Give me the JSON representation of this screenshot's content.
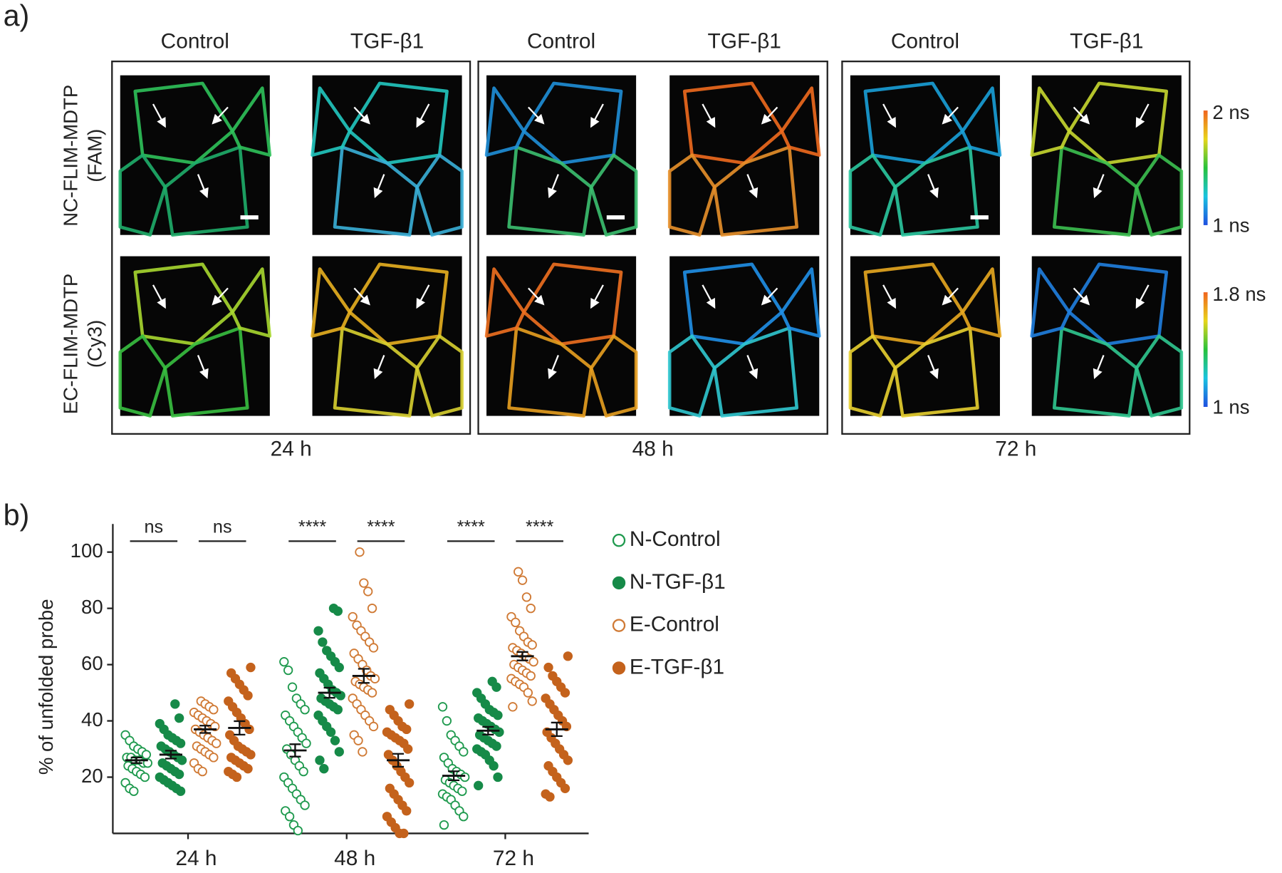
{
  "panel_a": {
    "label": "a)",
    "groups": [
      {
        "time": "24 h",
        "headers": [
          "Control",
          "TGF-β1"
        ]
      },
      {
        "time": "48 h",
        "headers": [
          "Control",
          "TGF-β1"
        ]
      },
      {
        "time": "72 h",
        "headers": [
          "Control",
          "TGF-β1"
        ]
      }
    ],
    "rows": [
      {
        "probe": "NC-FLIM-MDTP",
        "dye": "(FAM)",
        "scale": {
          "max": "2 ns",
          "min": "1 ns"
        }
      },
      {
        "probe": "EC-FLIM-MDTP",
        "dye": "(Cy3)",
        "scale": {
          "max": "1.8 ns",
          "min": "1 ns"
        }
      }
    ]
  },
  "panel_b_label": "b)",
  "chart_data": {
    "type": "strip",
    "ylabel": "% of unfolded probe",
    "categories": [
      "24 h",
      "48 h",
      "72 h"
    ],
    "ylim": [
      0,
      110
    ],
    "yticks": [
      20,
      40,
      60,
      80,
      100
    ],
    "significance": [
      "ns",
      "ns",
      "****",
      "****",
      "****",
      "****"
    ],
    "series": [
      {
        "name": "N-Control",
        "color": "#1f9a4e",
        "filled": false,
        "points": [
          [
            35,
            33,
            31,
            30,
            29,
            28,
            27,
            27,
            26,
            26,
            25,
            25,
            24,
            23,
            22,
            21,
            20,
            18,
            16,
            15
          ],
          [
            61,
            58,
            52,
            48,
            46,
            44,
            42,
            40,
            38,
            36,
            34,
            32,
            30,
            28,
            26,
            24,
            22,
            20,
            18,
            16,
            14,
            12,
            10,
            8,
            6,
            3,
            1
          ],
          [
            45,
            40,
            35,
            33,
            31,
            29,
            27,
            25,
            23,
            22,
            21,
            20,
            19,
            18,
            17,
            16,
            15,
            14,
            13,
            12,
            10,
            8,
            6,
            3
          ]
        ],
        "mean": [
          26,
          29.5,
          20.5
        ],
        "sem": [
          1,
          2.2,
          1.6
        ]
      },
      {
        "name": "N-TGF-β1",
        "color": "#168a48",
        "filled": true,
        "points": [
          [
            46,
            41,
            39,
            37,
            35,
            34,
            33,
            32,
            31,
            30,
            29,
            28,
            27,
            26,
            25,
            24,
            23,
            22,
            21,
            20,
            19,
            18,
            17,
            16,
            15
          ],
          [
            80,
            79,
            72,
            68,
            65,
            63,
            61,
            59,
            57,
            55,
            53,
            51,
            50,
            49,
            48,
            47,
            46,
            45,
            44,
            42,
            40,
            38,
            36,
            33,
            29,
            26,
            23
          ],
          [
            54,
            52,
            50,
            48,
            46,
            44,
            43,
            42,
            41,
            40,
            39,
            38,
            37,
            36,
            35,
            34,
            33,
            32,
            31,
            30,
            29,
            28,
            26,
            24,
            20,
            17
          ]
        ],
        "mean": [
          28,
          50,
          36.5
        ],
        "sem": [
          1.4,
          1.8,
          1.4
        ]
      },
      {
        "name": "E-Control",
        "color": "#d07a35",
        "filled": false,
        "points": [
          [
            47,
            46,
            45,
            44,
            43,
            42,
            41,
            40,
            39,
            38,
            37,
            36,
            35,
            34,
            33,
            32,
            31,
            30,
            29,
            28,
            27,
            25,
            23,
            22
          ],
          [
            100,
            89,
            86,
            80,
            77,
            74,
            72,
            70,
            68,
            66,
            64,
            62,
            60,
            58,
            56,
            55,
            54,
            53,
            52,
            51,
            50,
            48,
            46,
            44,
            42,
            40,
            38,
            35,
            33,
            29
          ],
          [
            93,
            90,
            84,
            80,
            77,
            75,
            72,
            70,
            68,
            67,
            66,
            65,
            64,
            63,
            62,
            61,
            60,
            59,
            58,
            57,
            56,
            55,
            54,
            53,
            52,
            50,
            47,
            45
          ]
        ],
        "mean": [
          37,
          56,
          63
        ],
        "sem": [
          1.3,
          2.5,
          1.5
        ]
      },
      {
        "name": "E-TGF-β1",
        "color": "#c4621c",
        "filled": true,
        "points": [
          [
            59,
            57,
            55,
            53,
            51,
            49,
            47,
            45,
            43,
            41,
            39,
            37,
            35,
            33,
            31,
            30,
            29,
            28,
            27,
            26,
            25,
            24,
            23,
            22,
            21,
            20
          ],
          [
            46,
            44,
            42,
            40,
            38,
            37,
            36,
            35,
            34,
            33,
            32,
            30,
            28,
            26,
            24,
            22,
            20,
            18,
            16,
            14,
            12,
            10,
            8,
            6,
            4,
            2,
            0,
            0
          ],
          [
            63,
            59,
            56,
            54,
            52,
            50,
            48,
            46,
            44,
            42,
            40,
            38,
            36,
            34,
            32,
            30,
            28,
            26,
            24,
            22,
            20,
            18,
            16,
            14,
            13
          ]
        ],
        "mean": [
          37.5,
          26,
          37
        ],
        "sem": [
          2.4,
          2.3,
          2.4
        ]
      }
    ]
  }
}
